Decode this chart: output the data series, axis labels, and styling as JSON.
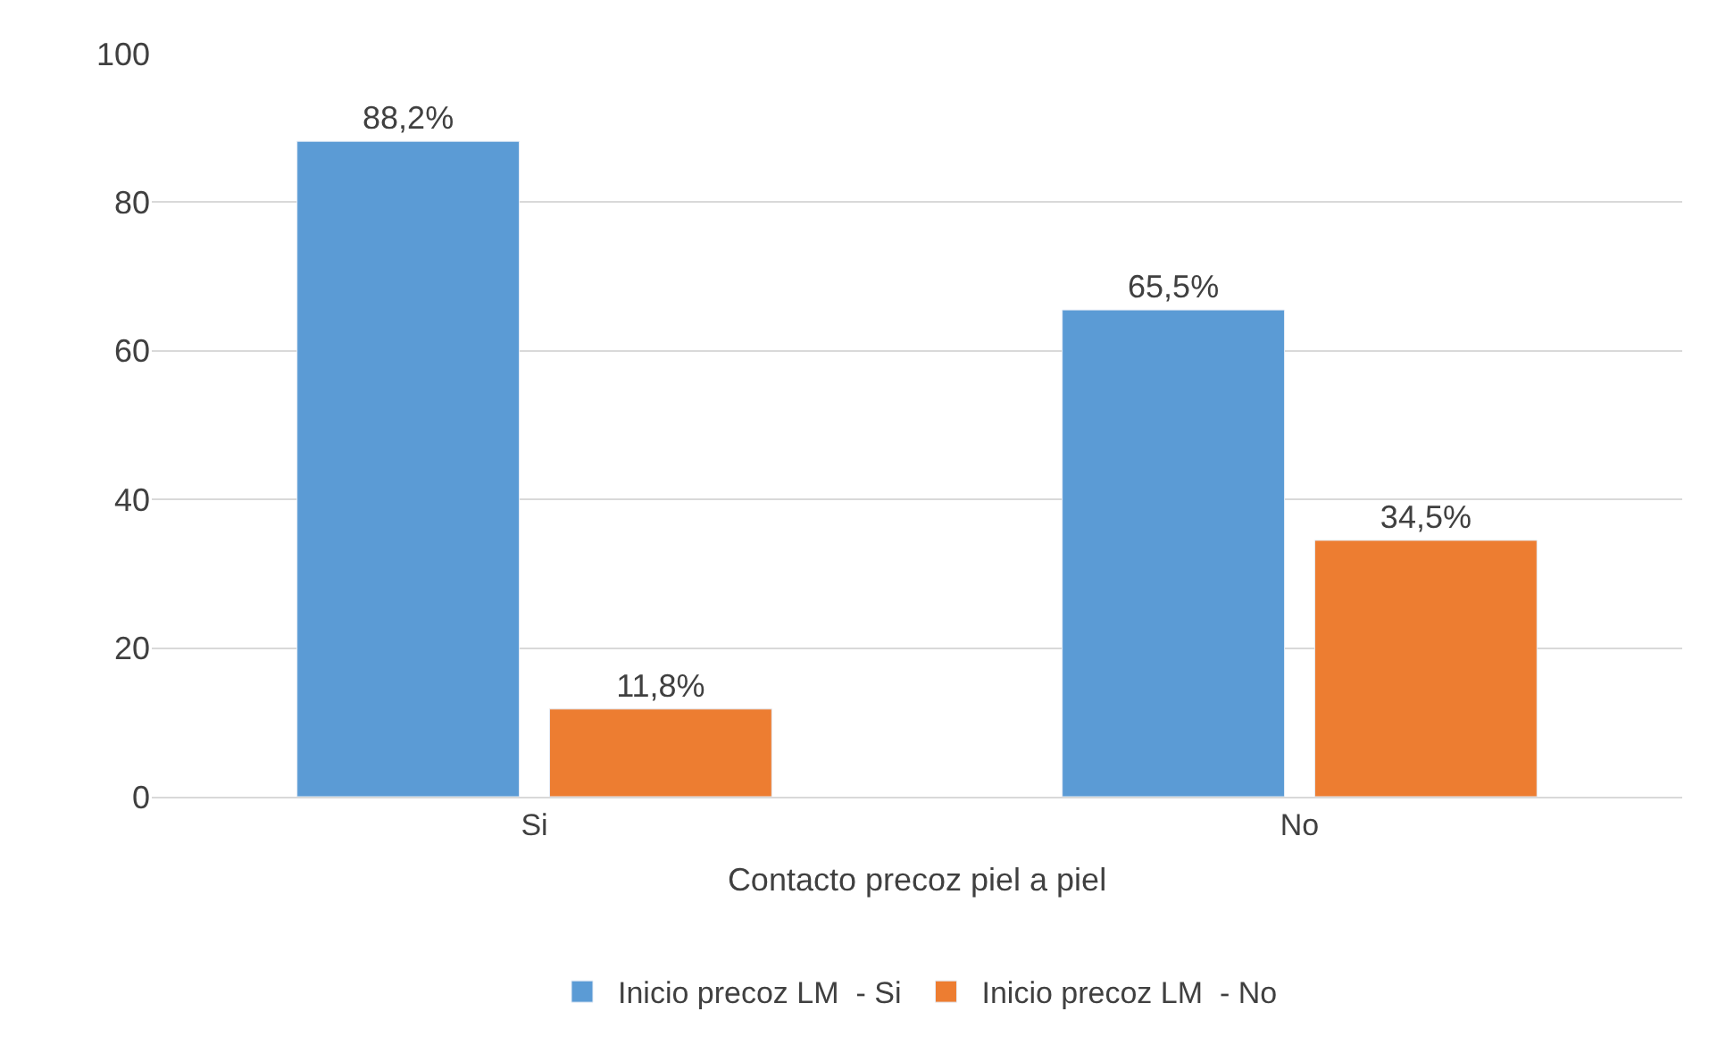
{
  "chart_data": {
    "type": "bar",
    "xlabel": "Contacto precoz piel a piel",
    "categories": [
      "Si",
      "No"
    ],
    "series": [
      {
        "name": "Inicio precoz LM  - Si",
        "color": "#5b9bd5",
        "values": [
          88.2,
          65.5
        ],
        "value_labels": [
          "88,2%",
          "65,5%"
        ]
      },
      {
        "name": "Inicio precoz LM  - No",
        "color": "#ed7d31",
        "values": [
          11.8,
          34.5
        ],
        "value_labels": [
          "11,8%",
          "34,5%"
        ]
      }
    ],
    "ylim": [
      0,
      100
    ],
    "yticks": [
      0,
      20,
      40,
      60,
      80,
      100
    ],
    "grid": "y",
    "legend": "bottom"
  }
}
